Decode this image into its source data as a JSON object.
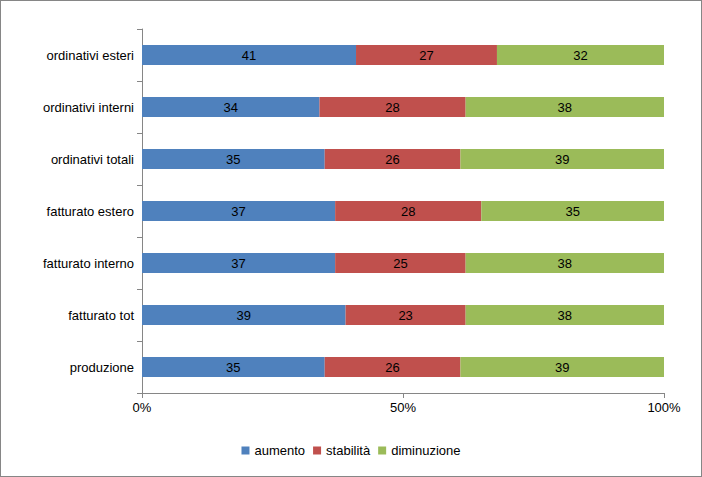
{
  "chart_data": {
    "type": "bar",
    "orientation": "horizontal",
    "stacked": true,
    "categories": [
      "ordinativi esteri",
      "ordinativi interni",
      "ordinativi totali",
      "fatturato estero",
      "fatturato interno",
      "fatturato tot",
      "produzione"
    ],
    "series": [
      {
        "name": "aumento",
        "color": "#4f81bd",
        "values": [
          41,
          34,
          35,
          37,
          37,
          39,
          35
        ]
      },
      {
        "name": "stabilità",
        "color": "#c0504d",
        "values": [
          27,
          28,
          26,
          28,
          25,
          23,
          26
        ]
      },
      {
        "name": "diminuzione",
        "color": "#9bbb59",
        "values": [
          32,
          38,
          39,
          35,
          38,
          38,
          39
        ]
      }
    ],
    "xlim": [
      0,
      100
    ],
    "xticks": [
      {
        "value": 0,
        "label": "0%"
      },
      {
        "value": 50,
        "label": "50%"
      },
      {
        "value": 100,
        "label": "100%"
      }
    ],
    "grid": false,
    "legend": "bottom",
    "data_labels": true
  }
}
